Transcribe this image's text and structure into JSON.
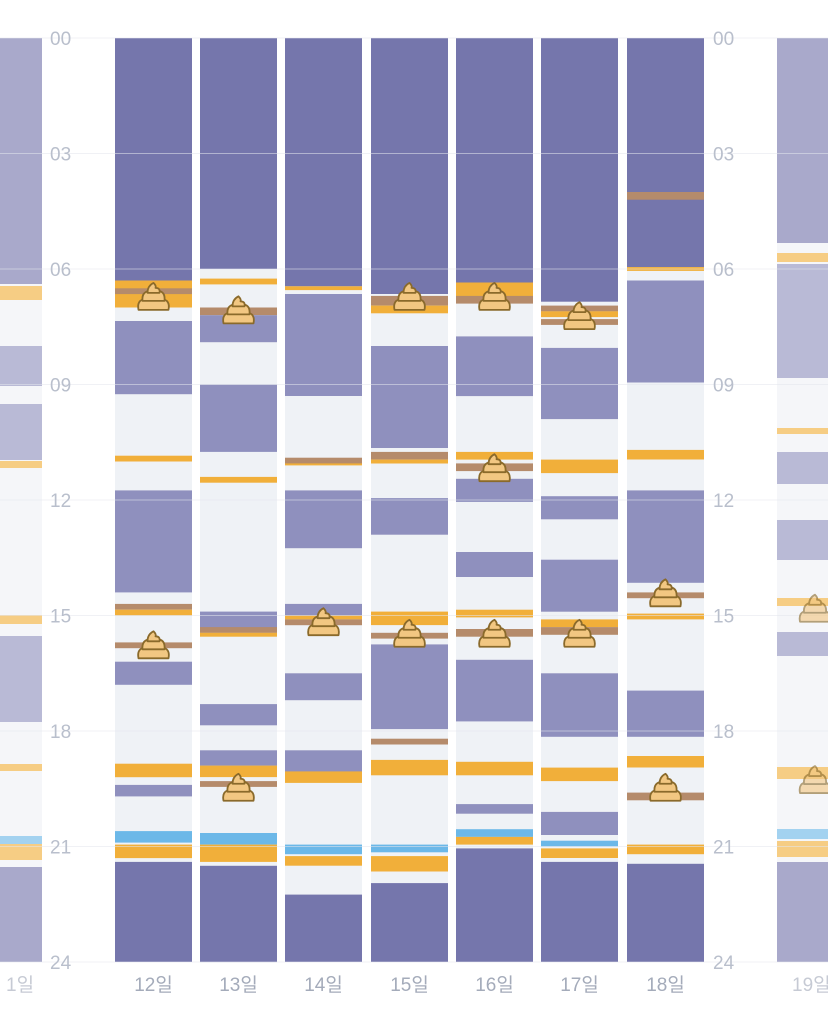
{
  "hour_ticks": [
    "00",
    "03",
    "06",
    "09",
    "12",
    "15",
    "18",
    "21",
    "24"
  ],
  "colors": {
    "sleep_deep": "#7576ac",
    "sleep_light": "#8f90be",
    "awake": "#eff2f6",
    "feed": "#f1af3a",
    "diaper": "#b58b6b",
    "bath": "#6cb8e8",
    "poop_fill": "#f2c782",
    "poop_stroke": "#8a6a2b",
    "grid": "#e4e7ee"
  },
  "legend_icons": {
    "poop": "poop-icon"
  },
  "partial_days": {
    "left_label": "1일",
    "right_label": "19일"
  },
  "days": [
    {
      "label": "12일",
      "events": [
        {
          "type": "sleep_deep",
          "start": 0.0,
          "end": 6.3
        },
        {
          "type": "feed",
          "start": 6.3,
          "end": 7.0
        },
        {
          "type": "diaper",
          "start": 6.5,
          "end": 6.65
        },
        {
          "type": "sleep_light",
          "start": 7.35,
          "end": 9.25
        },
        {
          "type": "feed",
          "start": 10.85,
          "end": 11.0
        },
        {
          "type": "sleep_light",
          "start": 11.75,
          "end": 14.4
        },
        {
          "type": "diaper",
          "start": 14.7,
          "end": 14.85
        },
        {
          "type": "feed",
          "start": 14.85,
          "end": 15.0
        },
        {
          "type": "diaper",
          "start": 15.7,
          "end": 15.85
        },
        {
          "type": "sleep_light",
          "start": 16.2,
          "end": 16.8
        },
        {
          "type": "feed",
          "start": 18.85,
          "end": 19.2
        },
        {
          "type": "sleep_light",
          "start": 19.4,
          "end": 19.7
        },
        {
          "type": "bath",
          "start": 20.6,
          "end": 20.9
        },
        {
          "type": "feed",
          "start": 20.95,
          "end": 21.3
        },
        {
          "type": "sleep_deep",
          "start": 21.4,
          "end": 24.0
        }
      ],
      "poops": [
        6.75,
        15.8
      ]
    },
    {
      "label": "13일",
      "events": [
        {
          "type": "sleep_deep",
          "start": 0.0,
          "end": 6.0
        },
        {
          "type": "feed",
          "start": 6.25,
          "end": 6.4
        },
        {
          "type": "diaper",
          "start": 7.0,
          "end": 7.2
        },
        {
          "type": "sleep_light",
          "start": 7.2,
          "end": 7.9
        },
        {
          "type": "sleep_light",
          "start": 9.0,
          "end": 10.75
        },
        {
          "type": "feed",
          "start": 11.4,
          "end": 11.55
        },
        {
          "type": "sleep_light",
          "start": 14.9,
          "end": 15.4
        },
        {
          "type": "diaper",
          "start": 15.3,
          "end": 15.45
        },
        {
          "type": "feed",
          "start": 15.45,
          "end": 15.55
        },
        {
          "type": "sleep_light",
          "start": 17.3,
          "end": 17.85
        },
        {
          "type": "sleep_light",
          "start": 18.5,
          "end": 18.9
        },
        {
          "type": "feed",
          "start": 18.9,
          "end": 19.2
        },
        {
          "type": "diaper",
          "start": 19.3,
          "end": 19.45
        },
        {
          "type": "bath",
          "start": 20.65,
          "end": 20.95
        },
        {
          "type": "feed",
          "start": 20.95,
          "end": 21.4
        },
        {
          "type": "sleep_deep",
          "start": 21.5,
          "end": 24.0
        }
      ],
      "poops": [
        7.1,
        19.5
      ]
    },
    {
      "label": "14일",
      "events": [
        {
          "type": "sleep_deep",
          "start": 0.0,
          "end": 6.45
        },
        {
          "type": "feed",
          "start": 6.45,
          "end": 6.55
        },
        {
          "type": "sleep_light",
          "start": 6.65,
          "end": 9.3
        },
        {
          "type": "diaper",
          "start": 10.9,
          "end": 11.05
        },
        {
          "type": "feed",
          "start": 11.05,
          "end": 11.1
        },
        {
          "type": "sleep_light",
          "start": 11.75,
          "end": 13.25
        },
        {
          "type": "sleep_light",
          "start": 14.7,
          "end": 15.0
        },
        {
          "type": "feed",
          "start": 15.0,
          "end": 15.1
        },
        {
          "type": "diaper",
          "start": 15.1,
          "end": 15.25
        },
        {
          "type": "sleep_light",
          "start": 16.5,
          "end": 17.2
        },
        {
          "type": "sleep_light",
          "start": 18.5,
          "end": 19.05
        },
        {
          "type": "feed",
          "start": 19.05,
          "end": 19.35
        },
        {
          "type": "bath",
          "start": 20.95,
          "end": 21.2
        },
        {
          "type": "feed",
          "start": 21.25,
          "end": 21.5
        },
        {
          "type": "sleep_deep",
          "start": 22.25,
          "end": 24.0
        }
      ],
      "poops": [
        15.2
      ]
    },
    {
      "label": "15일",
      "events": [
        {
          "type": "sleep_deep",
          "start": 0.0,
          "end": 6.65
        },
        {
          "type": "diaper",
          "start": 6.7,
          "end": 6.95
        },
        {
          "type": "feed",
          "start": 6.95,
          "end": 7.15
        },
        {
          "type": "sleep_light",
          "start": 8.0,
          "end": 10.65
        },
        {
          "type": "diaper",
          "start": 10.75,
          "end": 10.95
        },
        {
          "type": "feed",
          "start": 10.95,
          "end": 11.05
        },
        {
          "type": "sleep_light",
          "start": 11.95,
          "end": 12.9
        },
        {
          "type": "feed",
          "start": 14.9,
          "end": 15.25
        },
        {
          "type": "diaper",
          "start": 15.45,
          "end": 15.6
        },
        {
          "type": "sleep_light",
          "start": 15.75,
          "end": 17.95
        },
        {
          "type": "diaper",
          "start": 18.2,
          "end": 18.35
        },
        {
          "type": "feed",
          "start": 18.75,
          "end": 19.15
        },
        {
          "type": "bath",
          "start": 20.95,
          "end": 21.15
        },
        {
          "type": "feed",
          "start": 21.25,
          "end": 21.65
        },
        {
          "type": "sleep_deep",
          "start": 21.95,
          "end": 24.0
        }
      ],
      "poops": [
        6.75,
        15.5
      ]
    },
    {
      "label": "16일",
      "events": [
        {
          "type": "sleep_deep",
          "start": 0.0,
          "end": 6.35
        },
        {
          "type": "feed",
          "start": 6.35,
          "end": 6.7
        },
        {
          "type": "diaper",
          "start": 6.7,
          "end": 6.9
        },
        {
          "type": "sleep_light",
          "start": 7.75,
          "end": 9.3
        },
        {
          "type": "feed",
          "start": 10.75,
          "end": 10.95
        },
        {
          "type": "diaper",
          "start": 11.05,
          "end": 11.25
        },
        {
          "type": "sleep_light",
          "start": 11.45,
          "end": 12.05
        },
        {
          "type": "sleep_light",
          "start": 13.35,
          "end": 14.0
        },
        {
          "type": "feed",
          "start": 14.85,
          "end": 15.05
        },
        {
          "type": "diaper",
          "start": 15.35,
          "end": 15.55
        },
        {
          "type": "sleep_light",
          "start": 16.15,
          "end": 17.75
        },
        {
          "type": "feed",
          "start": 18.8,
          "end": 19.15
        },
        {
          "type": "sleep_light",
          "start": 19.9,
          "end": 20.15
        },
        {
          "type": "bath",
          "start": 20.55,
          "end": 20.75
        },
        {
          "type": "feed",
          "start": 20.75,
          "end": 20.95
        },
        {
          "type": "sleep_deep",
          "start": 21.05,
          "end": 24.0
        }
      ],
      "poops": [
        6.75,
        11.2,
        15.5
      ]
    },
    {
      "label": "17일",
      "events": [
        {
          "type": "sleep_deep",
          "start": 0.0,
          "end": 6.85
        },
        {
          "type": "diaper",
          "start": 6.95,
          "end": 7.1
        },
        {
          "type": "feed",
          "start": 7.1,
          "end": 7.25
        },
        {
          "type": "diaper",
          "start": 7.3,
          "end": 7.45
        },
        {
          "type": "sleep_light",
          "start": 8.05,
          "end": 9.9
        },
        {
          "type": "feed",
          "start": 10.95,
          "end": 11.3
        },
        {
          "type": "sleep_light",
          "start": 11.9,
          "end": 12.5
        },
        {
          "type": "sleep_light",
          "start": 13.55,
          "end": 14.9
        },
        {
          "type": "feed",
          "start": 15.1,
          "end": 15.3
        },
        {
          "type": "diaper",
          "start": 15.3,
          "end": 15.5
        },
        {
          "type": "sleep_light",
          "start": 16.5,
          "end": 18.15
        },
        {
          "type": "feed",
          "start": 18.95,
          "end": 19.3
        },
        {
          "type": "sleep_light",
          "start": 20.1,
          "end": 20.7
        },
        {
          "type": "bath",
          "start": 20.85,
          "end": 21.0
        },
        {
          "type": "feed",
          "start": 21.05,
          "end": 21.3
        },
        {
          "type": "sleep_deep",
          "start": 21.4,
          "end": 24.0
        }
      ],
      "poops": [
        7.25,
        15.5
      ]
    },
    {
      "label": "18일",
      "events": [
        {
          "type": "sleep_deep",
          "start": 0.0,
          "end": 5.95
        },
        {
          "type": "diaper",
          "start": 4.0,
          "end": 4.2
        },
        {
          "type": "feed",
          "start": 5.95,
          "end": 6.05
        },
        {
          "type": "sleep_light",
          "start": 6.3,
          "end": 8.95
        },
        {
          "type": "feed",
          "start": 10.7,
          "end": 10.95
        },
        {
          "type": "sleep_light",
          "start": 11.75,
          "end": 14.15
        },
        {
          "type": "diaper",
          "start": 14.4,
          "end": 14.55
        },
        {
          "type": "feed",
          "start": 14.95,
          "end": 15.1
        },
        {
          "type": "sleep_light",
          "start": 16.95,
          "end": 18.15
        },
        {
          "type": "feed",
          "start": 18.65,
          "end": 18.95
        },
        {
          "type": "diaper",
          "start": 19.6,
          "end": 19.8
        },
        {
          "type": "feed",
          "start": 20.95,
          "end": 21.2
        },
        {
          "type": "sleep_deep",
          "start": 21.45,
          "end": 24.0
        }
      ],
      "poops": [
        14.45,
        19.5
      ]
    }
  ]
}
